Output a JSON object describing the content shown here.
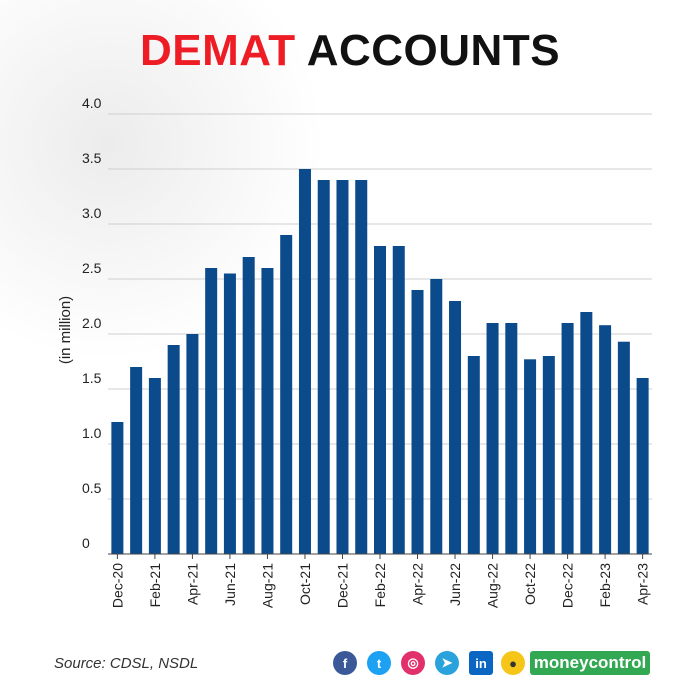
{
  "title": {
    "word1": "DEMAT",
    "word2": "ACCOUNTS"
  },
  "colors": {
    "bar": "#0b4a8b",
    "title_red": "#ee1c25",
    "grid": "#cfcfcf",
    "brand_green": "#33a852"
  },
  "footer": {
    "source": "Source: CDSL, NSDL",
    "brand": "moneycontrol"
  },
  "social_icons": [
    "facebook-icon",
    "twitter-icon",
    "instagram-icon",
    "telegram-icon",
    "linkedin-icon",
    "koo-icon"
  ],
  "chart_data": {
    "type": "bar",
    "title": "DEMAT ACCOUNTS",
    "ylabel": "(in million)",
    "xlabel": "",
    "ylim": [
      0,
      4.0
    ],
    "yticks": [
      "0",
      "0.5",
      "1.0",
      "1.5",
      "2.0",
      "2.5",
      "3.0",
      "3.5",
      "4.0"
    ],
    "grid": true,
    "categories": [
      "Dec-20",
      "Jan-21",
      "Feb-21",
      "Mar-21",
      "Apr-21",
      "May-21",
      "Jun-21",
      "Jul-21",
      "Aug-21",
      "Sep-21",
      "Oct-21",
      "Nov-21",
      "Dec-21",
      "Jan-22",
      "Feb-22",
      "Mar-22",
      "Apr-22",
      "May-22",
      "Jun-22",
      "Jul-22",
      "Aug-22",
      "Sep-22",
      "Oct-22",
      "Nov-22",
      "Dec-22",
      "Jan-23",
      "Feb-23",
      "Mar-23",
      "Apr-23"
    ],
    "xtick_labels": [
      "Dec-20",
      "",
      "Feb-21",
      "",
      "Apr-21",
      "",
      "Jun-21",
      "",
      "Aug-21",
      "",
      "Oct-21",
      "",
      "Dec-21",
      "",
      "Feb-22",
      "",
      "Apr-22",
      "",
      "Jun-22",
      "",
      "Aug-22",
      "",
      "Oct-22",
      "",
      "Dec-22",
      "",
      "Feb-23",
      "",
      "Apr-23"
    ],
    "values": [
      1.2,
      1.7,
      1.6,
      1.9,
      2.0,
      2.6,
      2.55,
      2.7,
      2.6,
      2.9,
      3.5,
      3.4,
      3.4,
      3.4,
      2.8,
      2.8,
      2.4,
      2.5,
      2.3,
      1.8,
      2.1,
      2.1,
      1.77,
      1.8,
      2.1,
      2.2,
      2.08,
      1.93,
      1.6
    ]
  }
}
